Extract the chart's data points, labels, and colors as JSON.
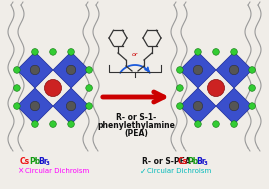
{
  "bg_color": "#f0ede8",
  "diamond_color": "#3a4fcc",
  "diamond_edge": "#1a2a99",
  "dot_green": "#33cc33",
  "dot_green_edge": "#117711",
  "dot_red": "#cc2222",
  "dot_red_edge": "#881111",
  "dot_dark": "#555555",
  "dot_dark_edge": "#222222",
  "arrow_color": "#cc0000",
  "curve_color": "#1a5adc",
  "wavy_color": "#999999",
  "molecule_color": "#333333",
  "center_label1": "R- or S-1-",
  "center_label2": "phenylethylamine",
  "center_label3": "(PEA)",
  "left_cs": "Cs",
  "left_cs_color": "#ee1111",
  "left_pb": "Pb",
  "left_pb_color": "#119911",
  "left_br": "Br",
  "left_br_color": "#1111cc",
  "left_3": "3",
  "left_cross": "×",
  "left_cross_color": "#ff00ff",
  "left_cd": "  Circular Dichroism",
  "left_cd_color": "#ff00ff",
  "right_pre": "R- or S-PEA-",
  "right_pre_color": "#111111",
  "right_cs": "Cs",
  "right_cs_color": "#ee1111",
  "right_pb": "Pb",
  "right_pb_color": "#119911",
  "right_br": "Br",
  "right_br_color": "#1111cc",
  "right_3": "3",
  "right_check": "✓",
  "right_check_color": "#00bbbb",
  "right_cd": "  Circular Dichroism",
  "right_cd_color": "#00bbbb",
  "or_color": "#cc0000"
}
